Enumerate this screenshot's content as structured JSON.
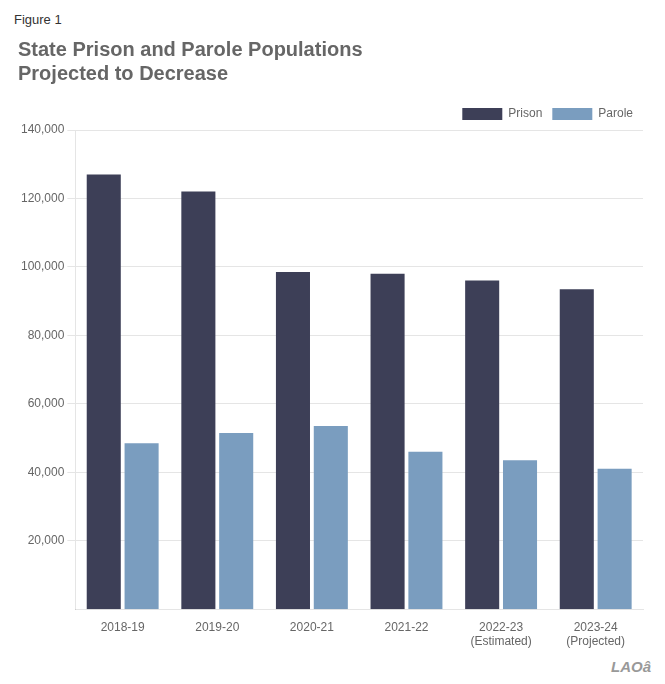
{
  "chart_data": {
    "type": "bar",
    "title": [
      "State Prison and Parole Populations",
      "Projected to Decrease"
    ],
    "annotations": [
      "Figure 1",
      "LAOâ"
    ],
    "categories": [
      "2018-19",
      "2019-20",
      "2020-21",
      "2021-22",
      "2022-23\n(Estimated)",
      "2023-24\n(Projected)"
    ],
    "series": [
      {
        "name": "Prison",
        "color": "#3d3f57",
        "values": [
          127000,
          122000,
          98500,
          98000,
          96000,
          93500
        ]
      },
      {
        "name": "Parole",
        "color": "#7a9dbf",
        "values": [
          48500,
          51500,
          53500,
          46000,
          43500,
          41000
        ]
      }
    ],
    "ylim": [
      0,
      140000
    ],
    "yticks": [
      {
        "value": 20000,
        "label": "20,000"
      },
      {
        "value": 40000,
        "label": "40,000"
      },
      {
        "value": 60000,
        "label": "60,000"
      },
      {
        "value": 80000,
        "label": "80,000"
      },
      {
        "value": 100000,
        "label": "100,000"
      },
      {
        "value": 120000,
        "label": "120,000"
      },
      {
        "value": 140000,
        "label": "140,000"
      }
    ],
    "grid": true,
    "legend": "upper right"
  }
}
